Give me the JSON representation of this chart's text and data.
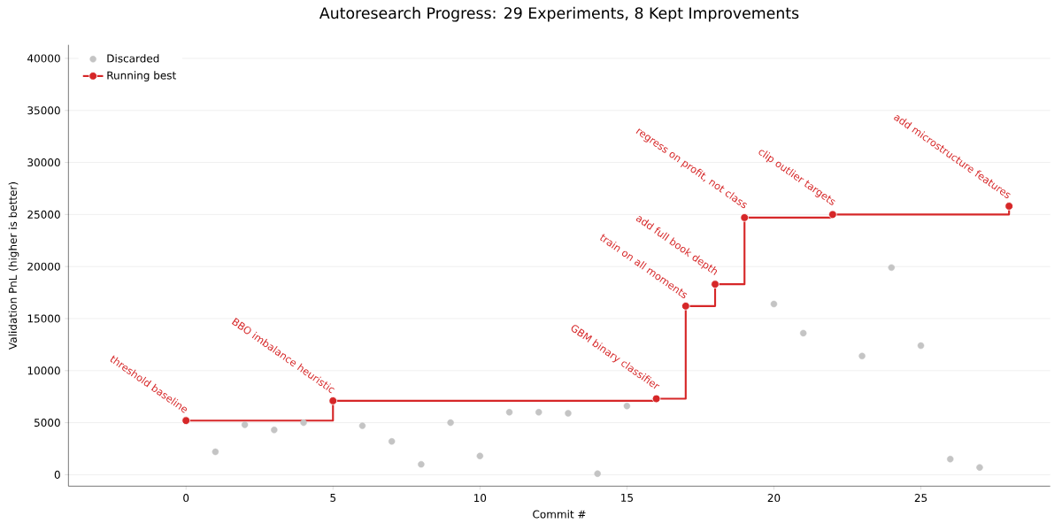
{
  "chart_data": {
    "type": "scatter",
    "title": "Autoresearch Progress: 29 Experiments, 8 Kept Improvements",
    "xlabel": "Commit #",
    "ylabel": "Validation PnL (higher is better)",
    "series": [
      {
        "name": "Discarded",
        "color": "#c4c4c4",
        "marker": "circle",
        "x": [
          1,
          2,
          3,
          4,
          6,
          7,
          8,
          9,
          10,
          11,
          12,
          13,
          14,
          15,
          20,
          21,
          23,
          24,
          25,
          26,
          27
        ],
        "values": [
          2200,
          4800,
          4300,
          5000,
          4700,
          3200,
          1000,
          5000,
          1800,
          6000,
          6000,
          5900,
          100,
          6600,
          16400,
          13600,
          11400,
          19900,
          12400,
          1500,
          700
        ]
      },
      {
        "name": "Running best",
        "type": "step",
        "color": "#d62728",
        "marker": "circle",
        "x": [
          0,
          5,
          16,
          17,
          18,
          19,
          22,
          28
        ],
        "values": [
          5200,
          7100,
          7300,
          16200,
          18300,
          24700,
          25000,
          25800
        ]
      }
    ],
    "annotations": [
      {
        "text": "threshold baseline",
        "x": 0,
        "y": 5200
      },
      {
        "text": "BBO imbalance heuristic",
        "x": 5,
        "y": 7100
      },
      {
        "text": "GBM binary classifier",
        "x": 16,
        "y": 7300
      },
      {
        "text": "train on all moments",
        "x": 17,
        "y": 16200
      },
      {
        "text": "add full book depth",
        "x": 18,
        "y": 18300
      },
      {
        "text": "regress on profit, not class",
        "x": 19,
        "y": 24700
      },
      {
        "text": "clip outlier targets",
        "x": 22,
        "y": 25000
      },
      {
        "text": "add microstructure features",
        "x": 28,
        "y": 25800
      }
    ],
    "xlim": [
      -4,
      29.4
    ],
    "ylim": [
      -1100,
      41300
    ],
    "xticks": [
      0,
      5,
      10,
      15,
      20,
      25
    ],
    "yticks": [
      0,
      5000,
      10000,
      15000,
      20000,
      25000,
      30000,
      35000,
      40000
    ],
    "grid": "y",
    "legend": "top left"
  }
}
